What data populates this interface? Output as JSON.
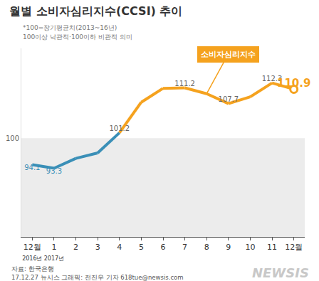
{
  "chart_data": {
    "type": "line",
    "title": "월별 소비자심리지수(CCSI) 추이",
    "notes": [
      "*100=장기평균치(2013~16년)",
      "100이상 낙관적·100이하 비관적 의미"
    ],
    "categories": [
      "12월",
      "1",
      "2",
      "3",
      "4",
      "5",
      "6",
      "7",
      "8",
      "9",
      "10",
      "11",
      "12월"
    ],
    "sublabels": [
      "2016년",
      "2017년",
      null,
      null,
      null,
      null,
      null,
      null,
      null,
      null,
      null,
      null,
      null
    ],
    "series": [
      {
        "name": "소비자심리지수",
        "color": "#f5a21e",
        "line_style": "solid",
        "colors": [
          "#3a8fb7",
          "#3a8fb7",
          "#3a8fb7",
          "#3a8fb7",
          "#f5a21e",
          "#f5a21e",
          "#f5a21e",
          "#f5a21e",
          "#f5a21e",
          "#f5a21e",
          "#f5a21e",
          "#f5a21e",
          "#f5a21e"
        ],
        "values": [
          94.1,
          93.3,
          95.5,
          96.7,
          101.2,
          108.0,
          111.1,
          111.2,
          109.9,
          107.7,
          109.2,
          112.3,
          110.9
        ],
        "value_labels": [
          "94.1",
          "93.3",
          null,
          null,
          "101.2",
          null,
          null,
          "111.2",
          null,
          "107.7",
          null,
          "112.3",
          "110.9"
        ]
      }
    ],
    "ylim": [
      78,
      120
    ],
    "yticks": [
      100
    ],
    "grid": false,
    "data_labels": true,
    "source": "자료: 한국은행",
    "credit": "17.12.27 뉴시스 그래픽: 전진우 기자 618tue@newsis.com",
    "watermark": "NEWSIS"
  }
}
